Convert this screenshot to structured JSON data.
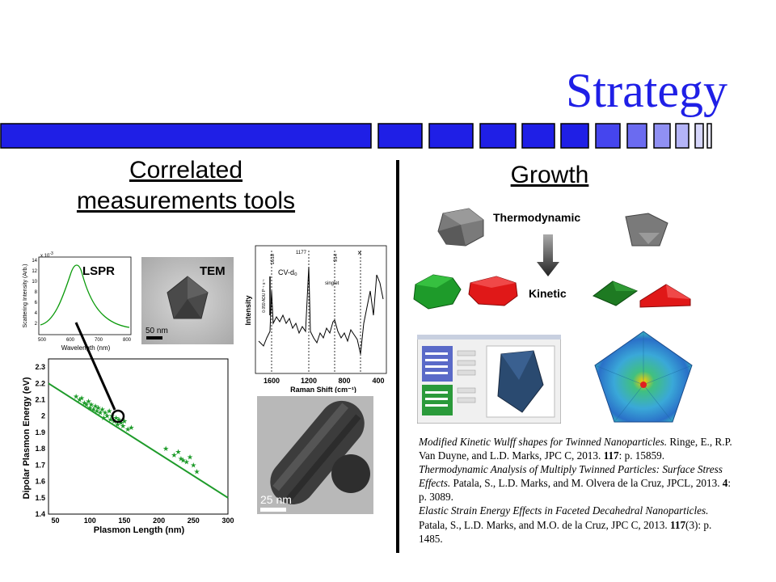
{
  "slide": {
    "title": "Strategy",
    "left_heading_line1": "Correlated",
    "left_heading_line2": "measurements tools",
    "right_heading": "Growth"
  },
  "colors": {
    "title": "#1f1fe6",
    "bar_blue": "#1f1fe6",
    "green": "#1e9b2a",
    "red": "#e01818"
  },
  "left_figures": {
    "lspr": {
      "label": "LSPR",
      "ylabel": "Scattering Intensity (Arb.)",
      "xlabel": "Wavelength (nm)",
      "scale_label": "x 10",
      "scale_exp": "-3",
      "yticks": [
        "2",
        "4",
        "6",
        "8",
        "10",
        "12",
        "14"
      ],
      "xticks": [
        "500",
        "600",
        "700",
        "800"
      ]
    },
    "tem": {
      "label": "TEM",
      "scale": "50 nm"
    },
    "raman": {
      "ylabel": "Intensity",
      "xlabel": "Raman Shift (cm⁻¹)",
      "xticks": [
        "1600",
        "1200",
        "800",
        "400"
      ],
      "peak_1618": "1618",
      "peak_1177": "1177",
      "peak_914": "914",
      "cross": "×",
      "cv_label": "CV-d₀",
      "singlet": "singlet",
      "scale_bar": "0.059 ADU P⁻¹ s⁻¹"
    },
    "rod_tem": {
      "scale": "25 nm"
    },
    "scatter": {
      "xlabel": "Plasmon Length (nm)",
      "ylabel": "Dipolar Plasmon Energy (eV)",
      "xticks": [
        "50",
        "100",
        "150",
        "200",
        "250",
        "300"
      ],
      "yticks": [
        "1.4",
        "1.5",
        "1.6",
        "1.7",
        "1.8",
        "1.9",
        "2",
        "2.1",
        "2.2",
        "2.3"
      ]
    }
  },
  "growth": {
    "thermodynamic": "Thermodynamic",
    "kinetic": "Kinetic"
  },
  "chart_data": {
    "type": "scatter",
    "title": "",
    "xlabel": "Plasmon Length (nm)",
    "ylabel": "Dipolar Plasmon Energy (eV)",
    "xlim": [
      40,
      300
    ],
    "ylim": [
      1.4,
      2.35
    ],
    "x": [
      80,
      85,
      88,
      92,
      95,
      98,
      100,
      102,
      105,
      108,
      110,
      112,
      115,
      118,
      120,
      122,
      125,
      128,
      130,
      132,
      135,
      138,
      140,
      142,
      145,
      148,
      150,
      155,
      160,
      210,
      222,
      228,
      232,
      235,
      240,
      245,
      250,
      255
    ],
    "y": [
      2.12,
      2.1,
      2.11,
      2.08,
      2.07,
      2.09,
      2.05,
      2.07,
      2.04,
      2.06,
      2.03,
      2.05,
      2.02,
      2.04,
      1.99,
      2.02,
      2.0,
      2.03,
      1.98,
      2.0,
      1.97,
      1.99,
      1.95,
      1.98,
      1.96,
      1.94,
      1.97,
      1.92,
      1.93,
      1.8,
      1.76,
      1.78,
      1.74,
      1.73,
      1.72,
      1.75,
      1.7,
      1.66
    ],
    "fit_line": {
      "x": [
        40,
        300
      ],
      "y": [
        2.2,
        1.5
      ]
    }
  },
  "references": [
    {
      "title": "Modified Kinetic Wulff shapes for Twinned Nanoparticles.",
      "authors": " Ringe, E., R.P. Van Duyne, and L.D. Marks, JPC C, 2013. ",
      "vol": "117",
      "pages": ": p. 15859."
    },
    {
      "title": "Thermodynamic Analysis of Multiply Twinned Particles: Surface Stress Effects.",
      "authors": " Patala, S., L.D. Marks, and M. Olvera de la Cruz, JPCL, 2013. ",
      "vol": "4",
      "pages": ": p. 3089."
    },
    {
      "title": "Elastic Strain Energy Effects in Faceted Decahedral Nanoparticles.",
      "authors": " Patala, S., L.D. Marks, and M.O. de la Cruz, JPC C, 2013. ",
      "vol": "117",
      "pages": "(3): p. 1485."
    }
  ]
}
